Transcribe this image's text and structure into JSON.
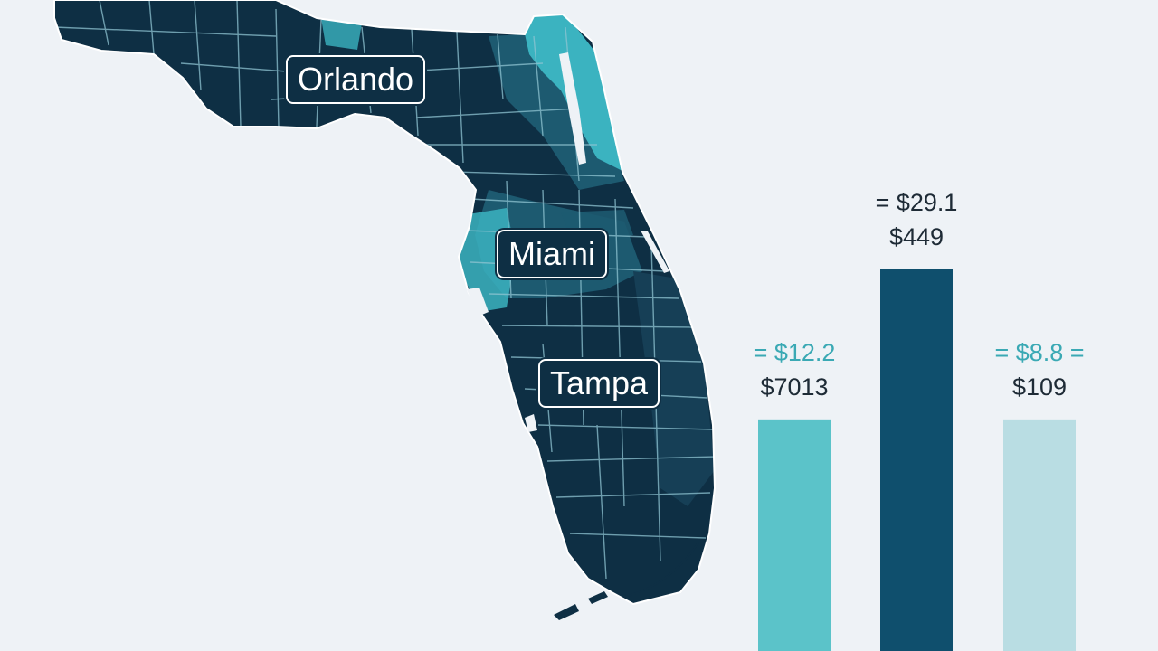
{
  "colors": {
    "background": "#eef2f6",
    "land_dark": "#0e2f44",
    "land_mid": "#1d5a70",
    "land_teal": "#3bb3c0",
    "county_lines": "#8fc4d2",
    "label_bg": "#0e2f44",
    "label_text": "#ffffff"
  },
  "map": {
    "labels": [
      {
        "id": "orlando",
        "text": "Orlando"
      },
      {
        "id": "miami",
        "text": "Miami"
      },
      {
        "id": "tampa",
        "text": "Tampa"
      }
    ]
  },
  "chart_data": {
    "type": "bar",
    "categories": [
      "",
      "",
      ""
    ],
    "values": [
      12.2,
      29.1,
      8.8
    ],
    "title": "",
    "xlabel": "",
    "ylabel": "",
    "ylim": [
      0,
      38
    ],
    "grid": false,
    "bar_colors": [
      "#5bc3c9",
      "#0f4f6d",
      "#b9dde3"
    ],
    "annotations": [
      {
        "top": "= $12.2",
        "bottom": "$7013",
        "top_color": "#3aa9b4"
      },
      {
        "top": "= $29.1",
        "bottom": "$449",
        "top_color": "#1e2b36"
      },
      {
        "top": "= $8.8 =",
        "bottom": "$109",
        "top_color": "#3aa9b4"
      }
    ]
  }
}
